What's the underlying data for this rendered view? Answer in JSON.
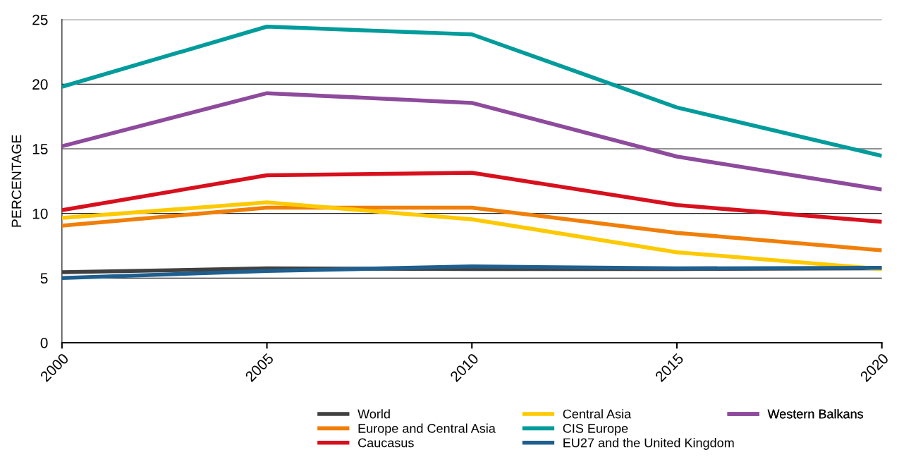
{
  "chart_data": {
    "type": "line",
    "ylabel": "PERCENTAGE",
    "x": [
      2000,
      2005,
      2010,
      2015,
      2020
    ],
    "xlim": [
      2000,
      2020
    ],
    "xticks": [
      2000,
      2005,
      2010,
      2015,
      2020
    ],
    "ylim": [
      0,
      25
    ],
    "yticks": [
      0,
      5,
      10,
      15,
      20,
      25
    ],
    "grid": "y",
    "legend": "bottom",
    "marker": "none",
    "line_style": "solid",
    "series": [
      {
        "name": "World",
        "color": "#404040",
        "values": [
          5.45,
          5.75,
          5.7,
          5.7,
          5.75
        ]
      },
      {
        "name": "Europe and Central Asia",
        "color": "#f07f09",
        "values": [
          9.05,
          10.45,
          10.45,
          8.5,
          7.15
        ]
      },
      {
        "name": "Caucasus",
        "color": "#d7101e",
        "values": [
          10.25,
          12.95,
          13.15,
          10.65,
          9.35
        ]
      },
      {
        "name": "Central Asia",
        "color": "#fdc900",
        "values": [
          9.65,
          10.85,
          9.55,
          7.0,
          5.7
        ]
      },
      {
        "name": "CIS Europe",
        "color": "#009b9b",
        "values": [
          19.8,
          24.45,
          23.85,
          18.2,
          14.45
        ]
      },
      {
        "name": "EU27 and the United Kingdom",
        "color": "#1f5f8f",
        "values": [
          5.0,
          5.55,
          5.9,
          5.75,
          5.8
        ]
      },
      {
        "name": "Western Balkans",
        "color": "#8e4a9c",
        "values": [
          15.2,
          19.3,
          18.55,
          14.4,
          11.85
        ]
      }
    ]
  }
}
